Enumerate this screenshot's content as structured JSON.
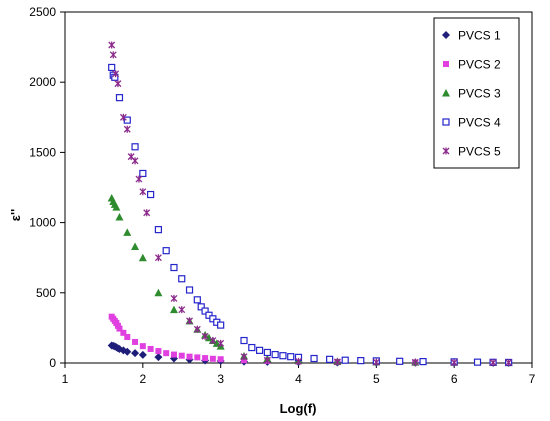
{
  "chart_data": {
    "type": "scatter",
    "title": "",
    "xlabel": "Log(f)",
    "ylabel": "ε''",
    "xlim": [
      1,
      7
    ],
    "ylim": [
      0,
      2500
    ],
    "xticks": [
      1,
      2,
      3,
      4,
      5,
      6,
      7
    ],
    "yticks": [
      0,
      500,
      1000,
      1500,
      2000,
      2500
    ],
    "grid": false,
    "legend_position": "top-right",
    "series": [
      {
        "name": "PVCS 1",
        "color": "#1F1F7A",
        "marker": "diamond",
        "points": [
          [
            1.6,
            125
          ],
          [
            1.62,
            122
          ],
          [
            1.64,
            118
          ],
          [
            1.66,
            112
          ],
          [
            1.68,
            105
          ],
          [
            1.7,
            100
          ],
          [
            1.75,
            90
          ],
          [
            1.8,
            80
          ],
          [
            1.9,
            70
          ],
          [
            2.0,
            58
          ],
          [
            2.2,
            42
          ],
          [
            2.4,
            32
          ],
          [
            2.6,
            24
          ],
          [
            2.8,
            18
          ],
          [
            3.0,
            14
          ],
          [
            3.3,
            10
          ],
          [
            3.6,
            8
          ],
          [
            4.0,
            6
          ],
          [
            4.5,
            4
          ],
          [
            5.0,
            3
          ],
          [
            5.5,
            2
          ],
          [
            6.0,
            2
          ],
          [
            6.5,
            1
          ],
          [
            6.7,
            1
          ]
        ]
      },
      {
        "name": "PVCS 2",
        "color": "#E040E0",
        "marker": "square",
        "points": [
          [
            1.6,
            330
          ],
          [
            1.62,
            315
          ],
          [
            1.64,
            300
          ],
          [
            1.66,
            285
          ],
          [
            1.68,
            265
          ],
          [
            1.7,
            245
          ],
          [
            1.75,
            215
          ],
          [
            1.8,
            185
          ],
          [
            1.9,
            150
          ],
          [
            2.0,
            120
          ],
          [
            2.1,
            100
          ],
          [
            2.2,
            85
          ],
          [
            2.3,
            70
          ],
          [
            2.4,
            60
          ],
          [
            2.5,
            52
          ],
          [
            2.6,
            45
          ],
          [
            2.7,
            40
          ],
          [
            2.8,
            35
          ],
          [
            2.9,
            30
          ],
          [
            3.0,
            27
          ],
          [
            3.3,
            20
          ],
          [
            3.6,
            15
          ],
          [
            4.0,
            12
          ],
          [
            4.5,
            8
          ],
          [
            5.0,
            6
          ],
          [
            5.5,
            4
          ],
          [
            6.0,
            3
          ],
          [
            6.5,
            2
          ],
          [
            6.7,
            2
          ]
        ]
      },
      {
        "name": "PVCS 3",
        "color": "#2E8B2E",
        "marker": "triangle",
        "points": [
          [
            1.6,
            1175
          ],
          [
            1.62,
            1150
          ],
          [
            1.64,
            1130
          ],
          [
            1.66,
            1110
          ],
          [
            1.7,
            1040
          ],
          [
            1.8,
            930
          ],
          [
            1.9,
            830
          ],
          [
            2.0,
            750
          ],
          [
            2.2,
            500
          ],
          [
            2.4,
            380
          ],
          [
            2.6,
            300
          ],
          [
            2.7,
            240
          ],
          [
            2.8,
            200
          ],
          [
            2.85,
            180
          ],
          [
            2.9,
            160
          ],
          [
            2.95,
            140
          ],
          [
            3.0,
            120
          ],
          [
            3.3,
            50
          ],
          [
            3.6,
            30
          ],
          [
            4.0,
            20
          ],
          [
            4.5,
            12
          ],
          [
            5.0,
            8
          ],
          [
            5.5,
            6
          ],
          [
            6.0,
            5
          ],
          [
            6.5,
            4
          ],
          [
            6.7,
            3
          ]
        ]
      },
      {
        "name": "PVCS 4",
        "color": "#2525CC",
        "marker": "open-square",
        "points": [
          [
            1.6,
            2105
          ],
          [
            1.62,
            2050
          ],
          [
            1.64,
            2035
          ],
          [
            1.7,
            1890
          ],
          [
            1.8,
            1730
          ],
          [
            1.9,
            1540
          ],
          [
            2.0,
            1350
          ],
          [
            2.1,
            1200
          ],
          [
            2.2,
            950
          ],
          [
            2.3,
            800
          ],
          [
            2.4,
            680
          ],
          [
            2.5,
            600
          ],
          [
            2.6,
            520
          ],
          [
            2.7,
            450
          ],
          [
            2.75,
            400
          ],
          [
            2.8,
            370
          ],
          [
            2.85,
            340
          ],
          [
            2.9,
            315
          ],
          [
            2.95,
            290
          ],
          [
            3.0,
            270
          ],
          [
            3.3,
            160
          ],
          [
            3.4,
            110
          ],
          [
            3.5,
            90
          ],
          [
            3.6,
            75
          ],
          [
            3.7,
            60
          ],
          [
            3.8,
            52
          ],
          [
            3.9,
            45
          ],
          [
            4.0,
            40
          ],
          [
            4.2,
            32
          ],
          [
            4.4,
            26
          ],
          [
            4.6,
            20
          ],
          [
            4.8,
            17
          ],
          [
            5.0,
            15
          ],
          [
            5.3,
            12
          ],
          [
            5.6,
            10
          ],
          [
            6.0,
            8
          ],
          [
            6.3,
            6
          ],
          [
            6.5,
            5
          ],
          [
            6.7,
            4
          ]
        ]
      },
      {
        "name": "PVCS 5",
        "color": "#8B2A8B",
        "marker": "star",
        "points": [
          [
            1.6,
            2265
          ],
          [
            1.62,
            2195
          ],
          [
            1.65,
            2060
          ],
          [
            1.68,
            1990
          ],
          [
            1.75,
            1750
          ],
          [
            1.8,
            1665
          ],
          [
            1.85,
            1470
          ],
          [
            1.9,
            1440
          ],
          [
            1.95,
            1310
          ],
          [
            2.0,
            1220
          ],
          [
            2.05,
            1070
          ],
          [
            2.2,
            750
          ],
          [
            2.4,
            460
          ],
          [
            2.5,
            380
          ],
          [
            2.6,
            300
          ],
          [
            2.7,
            240
          ],
          [
            2.8,
            190
          ],
          [
            2.9,
            160
          ],
          [
            3.0,
            140
          ],
          [
            3.3,
            45
          ],
          [
            3.6,
            20
          ],
          [
            4.0,
            12
          ],
          [
            4.5,
            8
          ],
          [
            5.0,
            6
          ],
          [
            5.5,
            5
          ],
          [
            6.0,
            4
          ],
          [
            6.5,
            3
          ],
          [
            6.7,
            3
          ]
        ]
      }
    ]
  }
}
